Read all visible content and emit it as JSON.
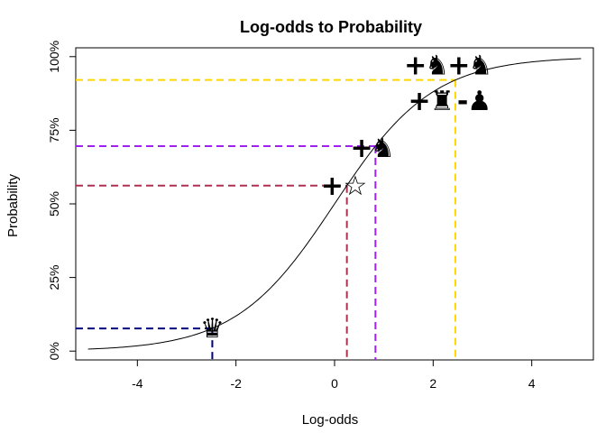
{
  "chart_data": {
    "type": "line",
    "title": "Log-odds to Probability",
    "xlabel": "Log-odds",
    "ylabel": "Probability",
    "xlim": [
      -5.25,
      5.25
    ],
    "ylim": [
      -0.03,
      1.03
    ],
    "x_ticks": [
      -4,
      -2,
      0,
      2,
      4
    ],
    "x_tick_labels": [
      "-4",
      "-2",
      "0",
      "2",
      "4"
    ],
    "y_ticks": [
      0,
      0.25,
      0.5,
      0.75,
      1
    ],
    "y_tick_labels": [
      "0%",
      "25%",
      "50%",
      "75%",
      "100%"
    ],
    "grid": false,
    "curve": {
      "function": "logistic",
      "x_range": [
        -5,
        5
      ]
    },
    "reference_lines": [
      {
        "x": -2.48,
        "y": 0.077,
        "color": "#000080"
      },
      {
        "x": 0.25,
        "y": 0.562,
        "color": "#b03050"
      },
      {
        "x": 0.83,
        "y": 0.696,
        "color": "#a020f0"
      },
      {
        "x": 2.45,
        "y": 0.921,
        "color": "#ffd700"
      }
    ],
    "annotations": [
      {
        "text": "♛",
        "x": -2.48,
        "y": 0.077,
        "name": "queen-symbol"
      },
      {
        "text": "+",
        "x": -0.05,
        "y": 0.562,
        "name": "plus-sign"
      },
      {
        "text": "☆",
        "x": 0.42,
        "y": 0.562,
        "name": "star-symbol"
      },
      {
        "text": "+",
        "x": 0.55,
        "y": 0.69,
        "name": "plus-sign"
      },
      {
        "text": "♞",
        "x": 0.98,
        "y": 0.69,
        "name": "knight-symbol"
      },
      {
        "text": "+",
        "x": 1.72,
        "y": 0.85,
        "name": "plus-sign"
      },
      {
        "text": "♜",
        "x": 2.18,
        "y": 0.85,
        "name": "rook-symbol"
      },
      {
        "text": "-",
        "x": 2.6,
        "y": 0.85,
        "name": "minus-sign"
      },
      {
        "text": "♟",
        "x": 2.94,
        "y": 0.85,
        "name": "pawn-symbol"
      },
      {
        "text": "+",
        "x": 1.64,
        "y": 0.97,
        "name": "plus-sign"
      },
      {
        "text": "♞",
        "x": 2.08,
        "y": 0.97,
        "name": "knight-symbol"
      },
      {
        "text": "+",
        "x": 2.52,
        "y": 0.97,
        "name": "plus-sign"
      },
      {
        "text": "♞",
        "x": 2.96,
        "y": 0.97,
        "name": "knight-symbol"
      }
    ]
  }
}
